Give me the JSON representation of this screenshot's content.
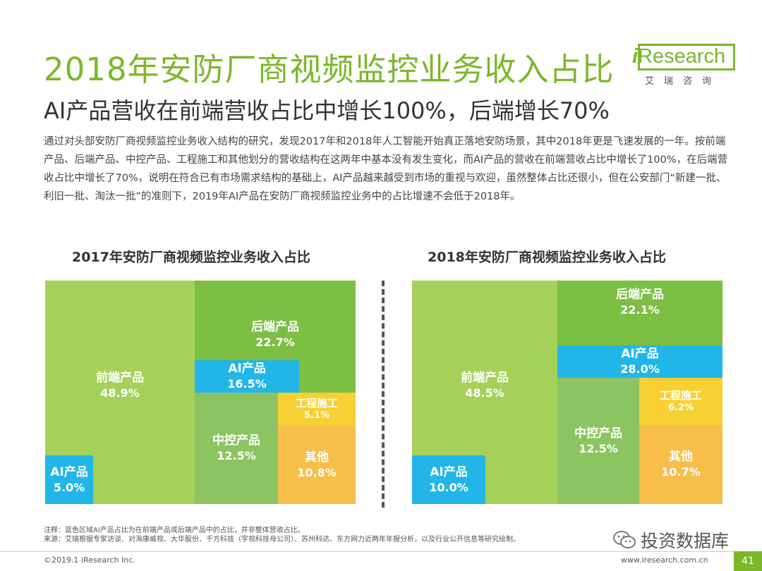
{
  "header": {
    "title": "2018年安防厂商视频监控业务收入占比",
    "subtitle": "AI产品营收在前端营收占比中增长100%，后端增长70%"
  },
  "logo": {
    "brand_i": "i",
    "brand_rest": "Research",
    "sub": "艾瑞咨询"
  },
  "intro": "通过对头部安防厂商视频监控业务收入结构的研究，发现2017年和2018年人工智能开始真正落地安防场景，其中2018年更是飞速发展的一年。按前端产品、后端产品、中控产品、工程施工和其他划分的营收结构在这两年中基本没有发生变化，而AI产品的营收在前端营收占比中增长了100%，在后端营收占比中增长了70%，说明在符合已有市场需求结构的基础上，AI产品越来越受到市场的重视与欢迎，虽然整体占比还很小，但在公安部门“新建一批、利旧一批、淘汰一批”的准则下，2019年AI产品在安防厂商视频监控业务中的占比增速不会低于2018年。",
  "chart_data": [
    {
      "type": "treemap",
      "title": "2017年安防厂商视频监控业务收入占比",
      "segments": [
        {
          "id": "front",
          "label": "前端产品",
          "value_text": "48.9%",
          "value": 48.9,
          "color": "#a5d15a"
        },
        {
          "id": "front_ai",
          "label": "AI产品",
          "value_text": "5.0%",
          "value": 5.0,
          "color": "#22b6e8",
          "note": "share within 前端产品"
        },
        {
          "id": "back",
          "label": "后端产品",
          "value_text": "22.7%",
          "value": 22.7,
          "color": "#7cbf43"
        },
        {
          "id": "back_ai",
          "label": "AI产品",
          "value_text": "16.5%",
          "value": 16.5,
          "color": "#22b6e8",
          "note": "share within 后端产品"
        },
        {
          "id": "control",
          "label": "中控产品",
          "value_text": "12.5%",
          "value": 12.5,
          "color": "#8dc462"
        },
        {
          "id": "eng",
          "label": "工程施工",
          "value_text": "5.1%",
          "value": 5.1,
          "color": "#f7d033"
        },
        {
          "id": "other",
          "label": "其他",
          "value_text": "10.8%",
          "value": 10.8,
          "color": "#f8be4a"
        }
      ]
    },
    {
      "type": "treemap",
      "title": "2018年安防厂商视频监控业务收入占比",
      "segments": [
        {
          "id": "front",
          "label": "前端产品",
          "value_text": "48.5%",
          "value": 48.5,
          "color": "#a5d15a"
        },
        {
          "id": "front_ai",
          "label": "AI产品",
          "value_text": "10.0%",
          "value": 10.0,
          "color": "#22b6e8",
          "note": "share within 前端产品"
        },
        {
          "id": "back",
          "label": "后端产品",
          "value_text": "22.1%",
          "value": 22.1,
          "color": "#7cbf43"
        },
        {
          "id": "back_ai",
          "label": "AI产品",
          "value_text": "28.0%",
          "value": 28.0,
          "color": "#22b6e8",
          "note": "share within 后端产品"
        },
        {
          "id": "control",
          "label": "中控产品",
          "value_text": "12.5%",
          "value": 12.5,
          "color": "#8dc462"
        },
        {
          "id": "eng",
          "label": "工程施工",
          "value_text": "6.2%",
          "value": 6.2,
          "color": "#f7d033"
        },
        {
          "id": "other",
          "label": "其他",
          "value_text": "10.7%",
          "value": 10.7,
          "color": "#f8be4a"
        }
      ]
    }
  ],
  "notes": {
    "line1": "注释：蓝色区域AI产品占比为在前端产品或后端产品中的占比，并非整体营收占比。",
    "line2": "来源：艾瑞根据专家访谈、对海康威视、大华股份、千方科技（宇视科技母公司）、苏州科达、东方网力近两年年报分析，以及行业公开信息等研究绘制。"
  },
  "watermark": "投资数据库",
  "footer": {
    "copyright": "©2019.1 iResearch Inc.",
    "site": "www.iresearch.com.cn",
    "page": "41"
  }
}
